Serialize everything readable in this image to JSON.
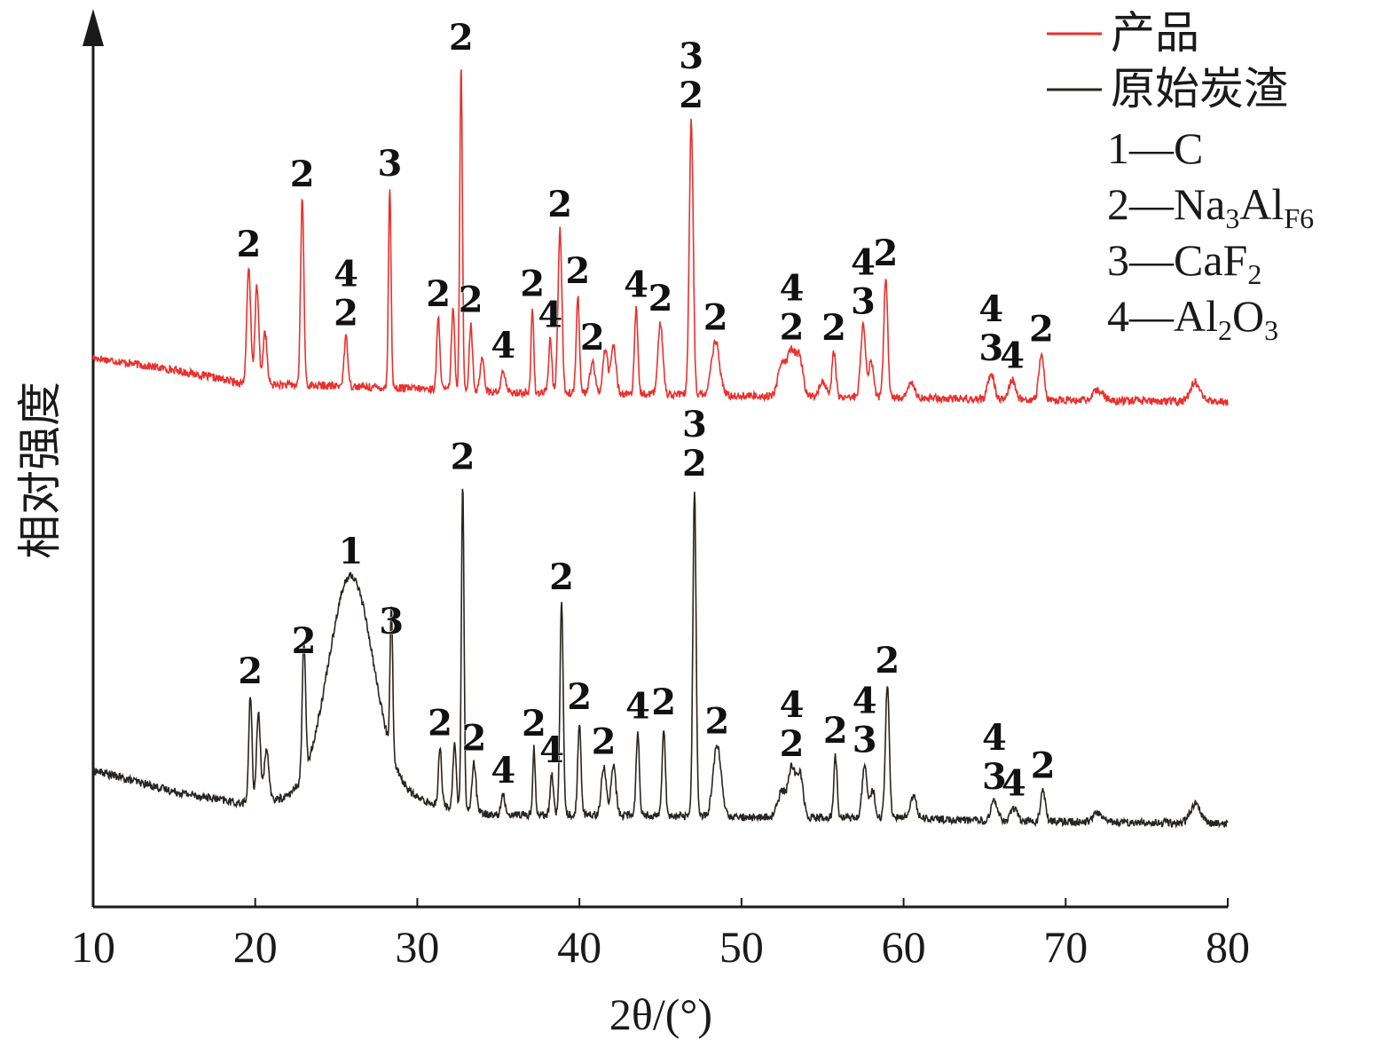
{
  "chart_data": {
    "type": "line",
    "xlabel": "2θ/(°)",
    "ylabel": "相对强度",
    "xlim": [
      10,
      80
    ],
    "x_ticks": [
      "10",
      "20",
      "30",
      "40",
      "50",
      "60",
      "70",
      "80"
    ],
    "colors": {
      "product": "#e8312e",
      "raw": "#2a2420"
    },
    "legend": {
      "position": "top-right",
      "series": [
        {
          "name": "产品",
          "color": "#e8312e"
        },
        {
          "name": "原始炭渣",
          "color": "#2a2420"
        }
      ],
      "phases": [
        {
          "text": "1—C",
          "base": "1—C",
          "sub": []
        },
        {
          "text": "2—Na3AlF6",
          "base": "2—Na",
          "sub": [
            [
              "3",
              "Al"
            ],
            [
              "F",
              ""
            ],
            [
              "6",
              ""
            ]
          ]
        },
        {
          "text": "3—CaF2",
          "base": "3—CaF",
          "sub": [
            [
              "2",
              ""
            ]
          ]
        },
        {
          "text": "4—Al2O3",
          "base": "4—Al",
          "sub": [
            [
              "2",
              "O"
            ],
            [
              "3",
              ""
            ]
          ]
        }
      ]
    },
    "series": [
      {
        "name": "产品",
        "color": "#e8312e",
        "baseline": [
          [
            10,
            52
          ],
          [
            15,
            38
          ],
          [
            19.5,
            22
          ],
          [
            25,
            20
          ],
          [
            30,
            17
          ],
          [
            35,
            13
          ],
          [
            40,
            12
          ],
          [
            45,
            11
          ],
          [
            50,
            9
          ],
          [
            55,
            8
          ],
          [
            60,
            7
          ],
          [
            65,
            5
          ],
          [
            70,
            4
          ],
          [
            75,
            3
          ],
          [
            80,
            2
          ]
        ],
        "peaks": [
          {
            "x": 19.6,
            "h": 130,
            "w": 0.12,
            "label": "2"
          },
          {
            "x": 20.1,
            "h": 110,
            "w": 0.12
          },
          {
            "x": 20.6,
            "h": 60,
            "w": 0.12
          },
          {
            "x": 22.9,
            "h": 210,
            "w": 0.1,
            "label": "2"
          },
          {
            "x": 25.6,
            "h": 55,
            "w": 0.12,
            "label": "4\n2"
          },
          {
            "x": 28.3,
            "h": 225,
            "w": 0.08,
            "label": "3"
          },
          {
            "x": 31.3,
            "h": 80,
            "w": 0.1,
            "label": "2"
          },
          {
            "x": 32.2,
            "h": 90,
            "w": 0.1
          },
          {
            "x": 32.7,
            "h": 370,
            "w": 0.08,
            "label": "2"
          },
          {
            "x": 33.3,
            "h": 75,
            "w": 0.1,
            "label": "2"
          },
          {
            "x": 34.0,
            "h": 40,
            "w": 0.12
          },
          {
            "x": 35.3,
            "h": 25,
            "w": 0.12,
            "label": "4"
          },
          {
            "x": 37.1,
            "h": 95,
            "w": 0.08,
            "label": "2"
          },
          {
            "x": 38.2,
            "h": 60,
            "w": 0.1,
            "label": "4"
          },
          {
            "x": 38.8,
            "h": 185,
            "w": 0.12,
            "label": "2"
          },
          {
            "x": 39.9,
            "h": 110,
            "w": 0.1,
            "label": "2"
          },
          {
            "x": 40.8,
            "h": 35,
            "w": 0.15,
            "label": "2"
          },
          {
            "x": 41.6,
            "h": 50,
            "w": 0.15
          },
          {
            "x": 42.1,
            "h": 55,
            "w": 0.15
          },
          {
            "x": 43.5,
            "h": 95,
            "w": 0.1,
            "label": "4"
          },
          {
            "x": 45.0,
            "h": 80,
            "w": 0.15,
            "label": "2"
          },
          {
            "x": 46.9,
            "h": 310,
            "w": 0.12,
            "label": "3\n2"
          },
          {
            "x": 48.4,
            "h": 60,
            "w": 0.25,
            "label": "2"
          },
          {
            "x": 52.5,
            "h": 35,
            "w": 0.25
          },
          {
            "x": 53.1,
            "h": 50,
            "w": 0.25,
            "label": "4\n2"
          },
          {
            "x": 53.6,
            "h": 40,
            "w": 0.2
          },
          {
            "x": 55.0,
            "h": 18,
            "w": 0.2
          },
          {
            "x": 55.7,
            "h": 50,
            "w": 0.12,
            "label": "2"
          },
          {
            "x": 57.5,
            "h": 80,
            "w": 0.15,
            "label": "4\n3"
          },
          {
            "x": 58.0,
            "h": 40,
            "w": 0.15
          },
          {
            "x": 58.9,
            "h": 135,
            "w": 0.12,
            "label": "2"
          },
          {
            "x": 60.5,
            "h": 18,
            "w": 0.2
          },
          {
            "x": 65.4,
            "h": 30,
            "w": 0.2,
            "label": "4\n3"
          },
          {
            "x": 66.7,
            "h": 22,
            "w": 0.2,
            "label": "4"
          },
          {
            "x": 68.5,
            "h": 52,
            "w": 0.15,
            "label": "2"
          },
          {
            "x": 72.0,
            "h": 12,
            "w": 0.3
          },
          {
            "x": 78.0,
            "h": 22,
            "w": 0.3
          }
        ]
      },
      {
        "name": "原始炭渣",
        "color": "#2a2420",
        "baseline": [
          [
            10,
            62
          ],
          [
            15,
            38
          ],
          [
            19,
            25
          ],
          [
            23,
            30
          ],
          [
            29,
            32
          ],
          [
            31.5,
            22
          ],
          [
            34.5,
            12
          ],
          [
            40,
            12
          ],
          [
            45,
            11
          ],
          [
            50,
            9
          ],
          [
            55,
            9
          ],
          [
            60,
            8
          ],
          [
            65,
            5
          ],
          [
            70,
            4
          ],
          [
            75,
            3
          ],
          [
            80,
            2
          ]
        ],
        "peaks": [
          {
            "x": 25.9,
            "h": 250,
            "w": 1.4,
            "label": "1"
          },
          {
            "x": 19.7,
            "h": 120,
            "w": 0.1,
            "label": "2"
          },
          {
            "x": 20.2,
            "h": 100,
            "w": 0.12
          },
          {
            "x": 20.7,
            "h": 55,
            "w": 0.15
          },
          {
            "x": 23.0,
            "h": 150,
            "w": 0.1,
            "label": "2"
          },
          {
            "x": 28.4,
            "h": 170,
            "w": 0.08,
            "label": "3"
          },
          {
            "x": 31.4,
            "h": 65,
            "w": 0.1,
            "label": "2"
          },
          {
            "x": 32.3,
            "h": 75,
            "w": 0.1
          },
          {
            "x": 32.8,
            "h": 370,
            "w": 0.08,
            "label": "2"
          },
          {
            "x": 33.5,
            "h": 55,
            "w": 0.12,
            "label": "2"
          },
          {
            "x": 35.3,
            "h": 22,
            "w": 0.12,
            "label": "4"
          },
          {
            "x": 37.2,
            "h": 75,
            "w": 0.08,
            "label": "2"
          },
          {
            "x": 38.3,
            "h": 45,
            "w": 0.1,
            "label": "4"
          },
          {
            "x": 38.9,
            "h": 240,
            "w": 0.1,
            "label": "2"
          },
          {
            "x": 40.0,
            "h": 105,
            "w": 0.1,
            "label": "2"
          },
          {
            "x": 41.5,
            "h": 55,
            "w": 0.15,
            "label": "2"
          },
          {
            "x": 42.1,
            "h": 55,
            "w": 0.15
          },
          {
            "x": 43.6,
            "h": 95,
            "w": 0.1,
            "label": "4"
          },
          {
            "x": 45.2,
            "h": 100,
            "w": 0.1,
            "label": "2"
          },
          {
            "x": 47.1,
            "h": 370,
            "w": 0.1,
            "label": "3\n2"
          },
          {
            "x": 48.5,
            "h": 80,
            "w": 0.25,
            "label": "2"
          },
          {
            "x": 52.5,
            "h": 30,
            "w": 0.25
          },
          {
            "x": 53.1,
            "h": 55,
            "w": 0.2,
            "label": "4\n2"
          },
          {
            "x": 53.6,
            "h": 50,
            "w": 0.2
          },
          {
            "x": 55.8,
            "h": 70,
            "w": 0.1,
            "label": "2"
          },
          {
            "x": 57.6,
            "h": 60,
            "w": 0.15,
            "label": "4\n3"
          },
          {
            "x": 58.1,
            "h": 30,
            "w": 0.15
          },
          {
            "x": 59.0,
            "h": 150,
            "w": 0.12,
            "label": "2"
          },
          {
            "x": 60.6,
            "h": 25,
            "w": 0.2
          },
          {
            "x": 65.6,
            "h": 22,
            "w": 0.2,
            "label": "4\n3"
          },
          {
            "x": 66.8,
            "h": 15,
            "w": 0.2,
            "label": "4"
          },
          {
            "x": 68.6,
            "h": 35,
            "w": 0.15,
            "label": "2"
          },
          {
            "x": 72.0,
            "h": 10,
            "w": 0.3
          },
          {
            "x": 78.0,
            "h": 22,
            "w": 0.3
          }
        ]
      }
    ]
  }
}
